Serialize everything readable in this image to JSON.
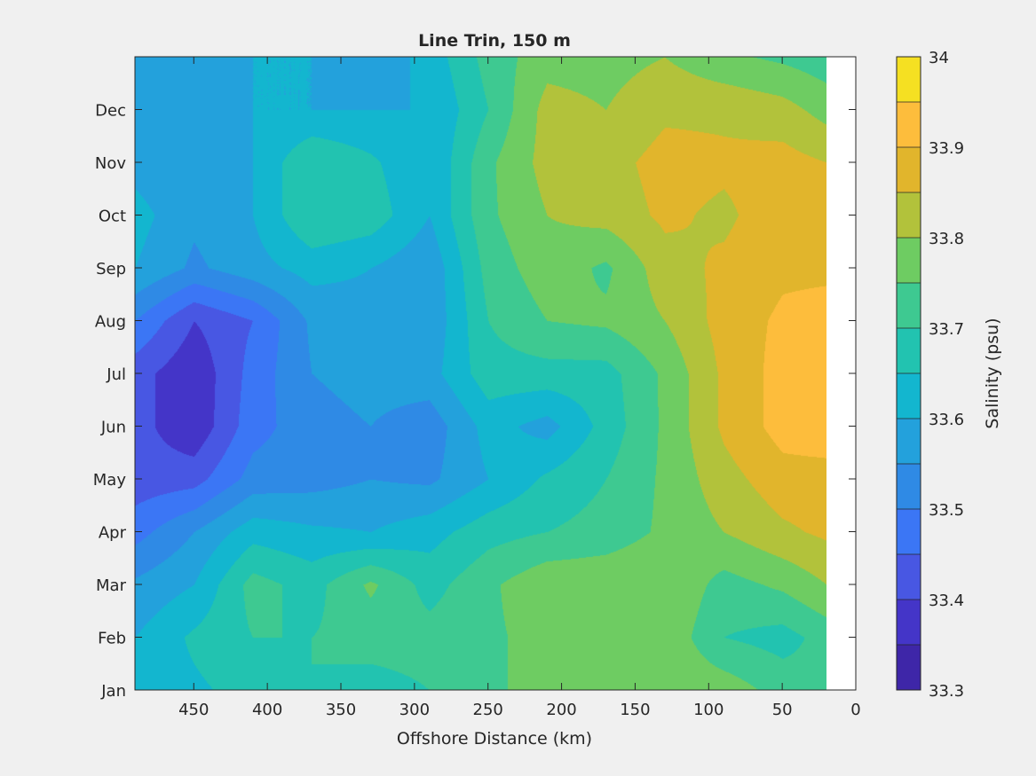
{
  "chart_data": {
    "type": "heatmap",
    "subtype": "filled-contour",
    "title": "Line Trin, 150 m",
    "xlabel": "Offshore Distance (km)",
    "ylabel": "",
    "xlim": [
      490,
      0
    ],
    "x_reversed": true,
    "xticks": [
      "450",
      "400",
      "350",
      "300",
      "250",
      "200",
      "150",
      "100",
      "50",
      "0"
    ],
    "xtick_values": [
      450,
      400,
      350,
      300,
      250,
      200,
      150,
      100,
      50,
      0
    ],
    "ylim": [
      1,
      13
    ],
    "yticks": [
      "Jan",
      "Feb",
      "Mar",
      "Apr",
      "May",
      "Jun",
      "Jul",
      "Aug",
      "Sep",
      "Oct",
      "Nov",
      "Dec"
    ],
    "ytick_values": [
      1,
      2,
      3,
      4,
      5,
      6,
      7,
      8,
      9,
      10,
      11,
      12
    ],
    "colorbar": {
      "label": "Salinity (psu)",
      "range": [
        33.3,
        34.0
      ],
      "ticks": [
        "33.3",
        "33.4",
        "33.5",
        "33.6",
        "33.7",
        "33.8",
        "33.9",
        "34"
      ],
      "tick_values": [
        33.3,
        33.4,
        33.5,
        33.6,
        33.7,
        33.8,
        33.9,
        34.0
      ],
      "levels": [
        33.3,
        33.35,
        33.4,
        33.45,
        33.5,
        33.55,
        33.6,
        33.65,
        33.7,
        33.75,
        33.8,
        33.85,
        33.9,
        33.95,
        34.0
      ],
      "colors": [
        "#3e26a8",
        "#4435c8",
        "#4857e3",
        "#3b76f5",
        "#2f8ae5",
        "#23a1dc",
        "#13b6cf",
        "#22c3b0",
        "#3ec991",
        "#6ecc62",
        "#b2c23b",
        "#e1b52c",
        "#fdbd3c",
        "#f5e022"
      ]
    },
    "data_extent_x": [
      20,
      490
    ],
    "no_data_color": "#ffffff",
    "grid_x": [
      490,
      450,
      410,
      370,
      330,
      290,
      250,
      210,
      170,
      130,
      90,
      50,
      20
    ],
    "grid_y": [
      1,
      2,
      3,
      4,
      5,
      6,
      7,
      8,
      9,
      10,
      11,
      12,
      13
    ],
    "z": [
      [
        33.62,
        33.64,
        33.67,
        33.7,
        33.68,
        33.7,
        33.73,
        33.79,
        33.8,
        33.79,
        33.78,
        33.73,
        33.71
      ],
      [
        33.6,
        33.66,
        33.7,
        33.7,
        33.72,
        33.72,
        33.74,
        33.77,
        33.8,
        33.79,
        33.7,
        33.68,
        33.72
      ],
      [
        33.56,
        33.6,
        33.72,
        33.68,
        33.76,
        33.68,
        33.74,
        33.79,
        33.79,
        33.8,
        33.73,
        33.76,
        33.8
      ],
      [
        33.48,
        33.55,
        33.63,
        33.61,
        33.6,
        33.63,
        33.68,
        33.7,
        33.72,
        33.76,
        33.8,
        33.84,
        33.86
      ],
      [
        33.42,
        33.43,
        33.52,
        33.53,
        33.55,
        33.54,
        33.6,
        33.66,
        33.7,
        33.76,
        33.83,
        33.88,
        33.88
      ],
      [
        33.42,
        33.36,
        33.48,
        33.53,
        33.55,
        33.52,
        33.62,
        33.58,
        33.67,
        33.76,
        33.86,
        33.92,
        33.93
      ],
      [
        33.42,
        33.36,
        33.47,
        33.55,
        33.57,
        33.58,
        33.68,
        33.68,
        33.68,
        33.76,
        33.86,
        33.92,
        33.95
      ],
      [
        33.5,
        33.4,
        33.45,
        33.56,
        33.58,
        33.56,
        33.7,
        33.75,
        33.76,
        33.8,
        33.87,
        33.91,
        33.92
      ],
      [
        33.6,
        33.54,
        33.58,
        33.62,
        33.6,
        33.56,
        33.72,
        33.78,
        33.74,
        33.83,
        33.86,
        33.89,
        33.89
      ],
      [
        33.62,
        33.56,
        33.6,
        33.7,
        33.68,
        33.6,
        33.74,
        33.8,
        33.82,
        33.86,
        33.84,
        33.88,
        33.88
      ],
      [
        33.58,
        33.55,
        33.6,
        33.7,
        33.66,
        33.6,
        33.74,
        33.82,
        33.83,
        33.87,
        33.86,
        33.87,
        33.85
      ],
      [
        33.56,
        33.58,
        33.6,
        33.6,
        33.6,
        33.6,
        33.7,
        33.82,
        33.8,
        33.84,
        33.84,
        33.82,
        33.78
      ],
      [
        33.58,
        33.6,
        33.6,
        33.6,
        33.56,
        33.62,
        33.72,
        33.78,
        33.78,
        33.8,
        33.76,
        33.74,
        33.72
      ]
    ]
  }
}
